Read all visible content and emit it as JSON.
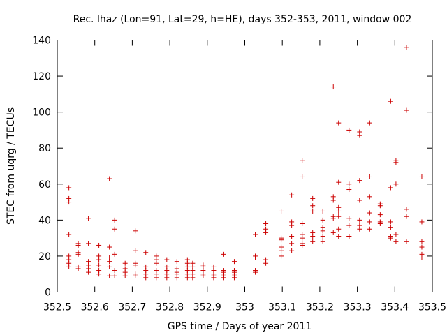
{
  "chart_data": {
    "type": "scatter",
    "title": "Rec. lhaz (Lon=91, Lat=29, h=HE), days 352-353, 2011, window 002",
    "xlabel": "GPS time / Days of year 2011",
    "ylabel": "STEC from uqrg / TECUs",
    "xlim": [
      352.5,
      353.5
    ],
    "ylim": [
      0,
      140
    ],
    "xticks": [
      352.5,
      352.6,
      352.7,
      352.8,
      352.9,
      353,
      353.1,
      353.2,
      353.3,
      353.4,
      353.5
    ],
    "xtick_labels": [
      "352.5",
      "352.6",
      "352.7",
      "352.8",
      "352.9",
      "353",
      "353.1",
      "353.2",
      "353.3",
      "353.4",
      "353.5"
    ],
    "yticks": [
      0,
      20,
      40,
      60,
      80,
      100,
      120,
      140
    ],
    "ytick_labels": [
      "0",
      "20",
      "40",
      "60",
      "80",
      "100",
      "120",
      "140"
    ],
    "grid": false,
    "marker": "+",
    "color": "#cc0000",
    "x": [
      352.531,
      352.531,
      352.531,
      352.531,
      352.531,
      352.531,
      352.531,
      352.531,
      352.556,
      352.556,
      352.556,
      352.556,
      352.556,
      352.556,
      352.583,
      352.583,
      352.583,
      352.583,
      352.583,
      352.583,
      352.611,
      352.611,
      352.611,
      352.611,
      352.611,
      352.611,
      352.639,
      352.639,
      352.639,
      352.639,
      352.639,
      352.639,
      352.653,
      352.653,
      352.653,
      352.653,
      352.653,
      352.681,
      352.681,
      352.681,
      352.681,
      352.708,
      352.708,
      352.708,
      352.708,
      352.708,
      352.708,
      352.736,
      352.736,
      352.736,
      352.736,
      352.736,
      352.764,
      352.764,
      352.764,
      352.764,
      352.764,
      352.764,
      352.792,
      352.792,
      352.792,
      352.792,
      352.792,
      352.819,
      352.819,
      352.819,
      352.819,
      352.819,
      352.847,
      352.847,
      352.847,
      352.847,
      352.847,
      352.847,
      352.861,
      352.861,
      352.861,
      352.861,
      352.861,
      352.889,
      352.889,
      352.889,
      352.889,
      352.889,
      352.917,
      352.917,
      352.917,
      352.917,
      352.917,
      352.944,
      352.944,
      352.944,
      352.944,
      352.944,
      352.944,
      352.972,
      352.972,
      352.972,
      352.972,
      352.972,
      352.972,
      353.028,
      353.028,
      353.028,
      353.028,
      353.028,
      353.056,
      353.056,
      353.056,
      353.056,
      353.056,
      353.097,
      353.097,
      353.097,
      353.097,
      353.097,
      353.097,
      353.125,
      353.125,
      353.125,
      353.125,
      353.125,
      353.125,
      353.153,
      353.153,
      353.153,
      353.153,
      353.153,
      353.153,
      353.153,
      353.181,
      353.181,
      353.181,
      353.181,
      353.181,
      353.181,
      353.208,
      353.208,
      353.208,
      353.208,
      353.208,
      353.208,
      353.236,
      353.236,
      353.236,
      353.236,
      353.236,
      353.236,
      353.25,
      353.25,
      353.25,
      353.25,
      353.25,
      353.25,
      353.25,
      353.278,
      353.278,
      353.278,
      353.278,
      353.278,
      353.278,
      353.278,
      353.306,
      353.306,
      353.306,
      353.306,
      353.306,
      353.306,
      353.306,
      353.333,
      353.333,
      353.333,
      353.333,
      353.333,
      353.333,
      353.361,
      353.361,
      353.361,
      353.361,
      353.361,
      353.389,
      353.389,
      353.389,
      353.389,
      353.389,
      353.389,
      353.403,
      353.403,
      353.403,
      353.403,
      353.403,
      353.431,
      353.431,
      353.431,
      353.431,
      353.431,
      353.472,
      353.472,
      353.472,
      353.472,
      353.472,
      353.472
    ],
    "y": [
      58,
      52,
      50,
      32,
      20,
      18,
      16,
      14,
      27,
      26,
      22,
      21,
      14,
      13,
      41,
      27,
      17,
      15,
      13,
      11,
      26,
      20,
      18,
      15,
      12,
      10,
      63,
      25,
      19,
      17,
      14,
      9,
      40,
      35,
      21,
      12,
      9,
      16,
      13,
      11,
      9,
      34,
      23,
      16,
      15,
      10,
      9,
      22,
      14,
      12,
      10,
      8,
      20,
      18,
      16,
      12,
      10,
      8,
      18,
      14,
      12,
      10,
      8,
      17,
      13,
      11,
      10,
      8,
      18,
      16,
      14,
      12,
      10,
      8,
      16,
      14,
      12,
      10,
      8,
      15,
      14,
      12,
      10,
      9,
      14,
      12,
      10,
      9,
      8,
      21,
      12,
      11,
      10,
      9,
      8,
      17,
      12,
      11,
      10,
      9,
      8,
      32,
      20,
      19,
      12,
      11,
      38,
      35,
      33,
      18,
      16,
      45,
      30,
      29,
      25,
      23,
      20,
      54,
      39,
      37,
      31,
      27,
      23,
      73,
      64,
      38,
      32,
      30,
      27,
      26,
      52,
      48,
      45,
      33,
      31,
      28,
      45,
      40,
      36,
      34,
      31,
      28,
      114,
      53,
      51,
      42,
      41,
      33,
      94,
      61,
      47,
      45,
      42,
      35,
      31,
      90,
      60,
      57,
      41,
      37,
      31,
      31,
      89,
      87,
      62,
      51,
      40,
      37,
      35,
      94,
      64,
      53,
      44,
      39,
      35,
      49,
      48,
      43,
      39,
      38,
      106,
      58,
      39,
      36,
      31,
      30,
      73,
      72,
      60,
      32,
      28,
      136,
      101,
      46,
      42,
      28,
      64,
      39,
      28,
      25,
      21,
      19
    ]
  }
}
